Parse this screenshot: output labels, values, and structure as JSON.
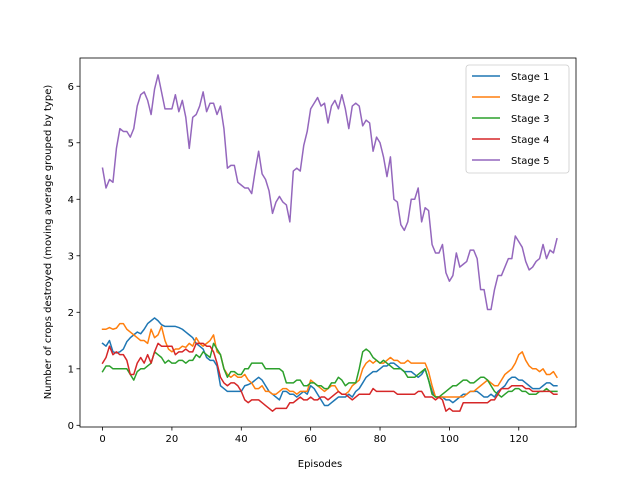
{
  "chart_data": {
    "type": "line",
    "title": "",
    "xlabel": "Episodes",
    "ylabel": "Number of crops destroyed (moving average grouped by type)",
    "xlim": [
      -6.5,
      136.5
    ],
    "ylim": [
      -0.03,
      6.5
    ],
    "xticks": [
      0,
      20,
      40,
      60,
      80,
      100,
      120
    ],
    "yticks": [
      0,
      1,
      2,
      3,
      4,
      5,
      6
    ],
    "grid": false,
    "legend_position": "top-right",
    "x_start": 0,
    "series": [
      {
        "name": "Stage 1",
        "color": "#1f77b4",
        "values": [
          1.45,
          1.4,
          1.5,
          1.3,
          1.28,
          1.3,
          1.35,
          1.48,
          1.55,
          1.6,
          1.65,
          1.62,
          1.7,
          1.8,
          1.85,
          1.9,
          1.85,
          1.78,
          1.75,
          1.75,
          1.75,
          1.75,
          1.73,
          1.7,
          1.65,
          1.6,
          1.55,
          1.45,
          1.4,
          1.35,
          1.2,
          1.15,
          1.15,
          1.05,
          0.7,
          0.65,
          0.6,
          0.6,
          0.6,
          0.6,
          0.6,
          0.7,
          0.72,
          0.75,
          0.8,
          0.85,
          0.8,
          0.7,
          0.6,
          0.55,
          0.5,
          0.45,
          0.6,
          0.6,
          0.55,
          0.55,
          0.5,
          0.55,
          0.6,
          0.55,
          0.7,
          0.65,
          0.55,
          0.45,
          0.35,
          0.35,
          0.4,
          0.45,
          0.5,
          0.5,
          0.5,
          0.55,
          0.5,
          0.6,
          0.65,
          0.75,
          0.85,
          0.9,
          0.95,
          0.95,
          1.0,
          1.05,
          1.05,
          1.1,
          1.1,
          1.05,
          1.0,
          0.95,
          0.95,
          0.95,
          0.9,
          0.85,
          0.9,
          1.0,
          0.8,
          0.6,
          0.5,
          0.5,
          0.5,
          0.45,
          0.45,
          0.4,
          0.45,
          0.5,
          0.55,
          0.55,
          0.6,
          0.6,
          0.6,
          0.55,
          0.5,
          0.5,
          0.55,
          0.5,
          0.6,
          0.65,
          0.7,
          0.8,
          0.85,
          0.85,
          0.8,
          0.8,
          0.75,
          0.7,
          0.65,
          0.65,
          0.65,
          0.7,
          0.75,
          0.75,
          0.7,
          0.7
        ]
      },
      {
        "name": "Stage 2",
        "color": "#ff7f0e",
        "values": [
          1.7,
          1.7,
          1.73,
          1.7,
          1.72,
          1.8,
          1.8,
          1.7,
          1.65,
          1.6,
          1.55,
          1.5,
          1.5,
          1.45,
          1.7,
          1.55,
          1.6,
          1.75,
          1.5,
          1.35,
          1.3,
          1.35,
          1.35,
          1.4,
          1.38,
          1.45,
          1.4,
          1.55,
          1.45,
          1.4,
          1.45,
          1.5,
          1.6,
          1.3,
          1.25,
          1.0,
          0.9,
          0.85,
          0.9,
          0.85,
          0.85,
          0.9,
          0.8,
          0.75,
          0.65,
          0.65,
          0.7,
          0.6,
          0.6,
          0.55,
          0.55,
          0.6,
          0.65,
          0.65,
          0.6,
          0.6,
          0.55,
          0.6,
          0.6,
          0.6,
          0.8,
          0.75,
          0.7,
          0.65,
          0.6,
          0.65,
          0.7,
          0.7,
          0.6,
          0.55,
          0.55,
          0.6,
          0.7,
          0.75,
          0.8,
          1.0,
          1.1,
          1.15,
          1.1,
          1.15,
          1.1,
          1.1,
          1.15,
          1.2,
          1.15,
          1.15,
          1.1,
          1.1,
          1.15,
          1.1,
          1.1,
          1.1,
          1.1,
          1.1,
          0.95,
          0.7,
          0.5,
          0.5,
          0.5,
          0.5,
          0.5,
          0.5,
          0.5,
          0.5,
          0.5,
          0.55,
          0.6,
          0.6,
          0.65,
          0.7,
          0.75,
          0.8,
          0.75,
          0.7,
          0.7,
          0.8,
          0.9,
          0.95,
          1.0,
          1.1,
          1.25,
          1.3,
          1.15,
          1.05,
          1.0,
          1.0,
          0.95,
          1.0,
          0.9,
          0.9,
          0.95,
          0.85
        ]
      },
      {
        "name": "Stage 3",
        "color": "#2ca02c",
        "values": [
          0.95,
          1.05,
          1.05,
          1.0,
          1.0,
          1.0,
          1.0,
          1.0,
          0.9,
          0.8,
          0.95,
          1.0,
          1.0,
          1.05,
          1.1,
          1.3,
          1.25,
          1.2,
          1.1,
          1.15,
          1.1,
          1.1,
          1.15,
          1.15,
          1.1,
          1.15,
          1.15,
          1.25,
          1.2,
          1.3,
          1.25,
          1.2,
          1.45,
          1.35,
          1.25,
          1.0,
          0.85,
          0.95,
          0.95,
          0.9,
          0.9,
          1.0,
          1.0,
          1.1,
          1.1,
          1.1,
          1.1,
          1.0,
          1.0,
          1.0,
          1.0,
          1.0,
          0.95,
          0.75,
          0.75,
          0.75,
          0.8,
          0.8,
          0.7,
          0.7,
          0.75,
          0.75,
          0.7,
          0.7,
          0.65,
          0.65,
          0.75,
          0.75,
          0.85,
          0.8,
          0.7,
          0.75,
          0.75,
          0.75,
          1.0,
          1.3,
          1.35,
          1.3,
          1.2,
          1.15,
          1.1,
          1.15,
          1.1,
          1.05,
          1.0,
          1.0,
          1.0,
          0.95,
          0.85,
          0.85,
          0.85,
          0.9,
          0.95,
          1.0,
          0.8,
          0.55,
          0.5,
          0.5,
          0.55,
          0.6,
          0.65,
          0.7,
          0.7,
          0.75,
          0.8,
          0.8,
          0.75,
          0.75,
          0.8,
          0.85,
          0.85,
          0.8,
          0.7,
          0.6,
          0.55,
          0.5,
          0.55,
          0.6,
          0.6,
          0.65,
          0.65,
          0.6,
          0.6,
          0.55,
          0.55,
          0.55,
          0.6,
          0.6,
          0.65,
          0.6,
          0.6,
          0.6
        ]
      },
      {
        "name": "Stage 4",
        "color": "#d62728",
        "values": [
          1.1,
          1.2,
          1.4,
          1.25,
          1.3,
          1.25,
          1.25,
          1.15,
          0.9,
          0.9,
          1.1,
          1.2,
          1.1,
          1.25,
          1.1,
          1.3,
          1.45,
          1.4,
          1.4,
          1.4,
          1.4,
          1.25,
          1.3,
          1.3,
          1.35,
          1.3,
          1.3,
          1.45,
          1.45,
          1.45,
          1.4,
          1.4,
          1.3,
          1.1,
          0.85,
          0.75,
          0.7,
          0.75,
          0.75,
          0.7,
          0.6,
          0.45,
          0.4,
          0.45,
          0.45,
          0.45,
          0.4,
          0.35,
          0.3,
          0.25,
          0.3,
          0.3,
          0.3,
          0.3,
          0.4,
          0.4,
          0.45,
          0.5,
          0.45,
          0.45,
          0.5,
          0.45,
          0.45,
          0.5,
          0.5,
          0.45,
          0.5,
          0.55,
          0.6,
          0.55,
          0.55,
          0.5,
          0.45,
          0.5,
          0.55,
          0.55,
          0.55,
          0.55,
          0.65,
          0.6,
          0.6,
          0.6,
          0.6,
          0.6,
          0.6,
          0.55,
          0.55,
          0.55,
          0.55,
          0.55,
          0.55,
          0.6,
          0.6,
          0.5,
          0.5,
          0.5,
          0.45,
          0.5,
          0.45,
          0.25,
          0.3,
          0.25,
          0.25,
          0.25,
          0.4,
          0.4,
          0.4,
          0.4,
          0.4,
          0.4,
          0.4,
          0.4,
          0.45,
          0.45,
          0.55,
          0.65,
          0.65,
          0.65,
          0.7,
          0.7,
          0.7,
          0.7,
          0.65,
          0.65,
          0.6,
          0.6,
          0.6,
          0.6,
          0.6,
          0.6,
          0.55,
          0.55
        ]
      },
      {
        "name": "Stage 5",
        "color": "#9467bd",
        "values": [
          4.55,
          4.2,
          4.35,
          4.3,
          4.9,
          5.25,
          5.2,
          5.2,
          5.1,
          5.25,
          5.65,
          5.85,
          5.9,
          5.75,
          5.5,
          5.95,
          6.2,
          5.9,
          5.6,
          5.6,
          5.6,
          5.85,
          5.55,
          5.75,
          5.45,
          4.9,
          5.45,
          5.5,
          5.65,
          5.9,
          5.55,
          5.7,
          5.7,
          5.5,
          5.65,
          5.25,
          4.55,
          4.6,
          4.6,
          4.3,
          4.25,
          4.2,
          4.2,
          4.1,
          4.5,
          4.85,
          4.45,
          4.35,
          4.15,
          3.75,
          3.95,
          4.05,
          3.95,
          3.9,
          3.6,
          4.5,
          4.55,
          4.5,
          4.95,
          5.2,
          5.6,
          5.7,
          5.8,
          5.65,
          5.7,
          5.35,
          5.65,
          5.75,
          5.6,
          5.85,
          5.6,
          5.25,
          5.65,
          5.7,
          5.65,
          5.3,
          5.4,
          5.35,
          4.85,
          5.1,
          5.0,
          4.75,
          4.4,
          4.75,
          4.0,
          3.95,
          3.55,
          3.45,
          3.6,
          4.0,
          4.0,
          4.2,
          3.6,
          3.85,
          3.8,
          3.2,
          3.05,
          3.05,
          3.2,
          2.7,
          2.55,
          2.65,
          3.05,
          2.8,
          2.85,
          2.9,
          3.1,
          3.1,
          2.95,
          2.4,
          2.4,
          2.05,
          2.05,
          2.4,
          2.65,
          2.65,
          2.8,
          2.95,
          2.95,
          3.35,
          3.25,
          3.15,
          2.9,
          2.75,
          2.8,
          2.9,
          2.95,
          3.2,
          2.95,
          3.1,
          3.05,
          3.3
        ]
      }
    ]
  }
}
